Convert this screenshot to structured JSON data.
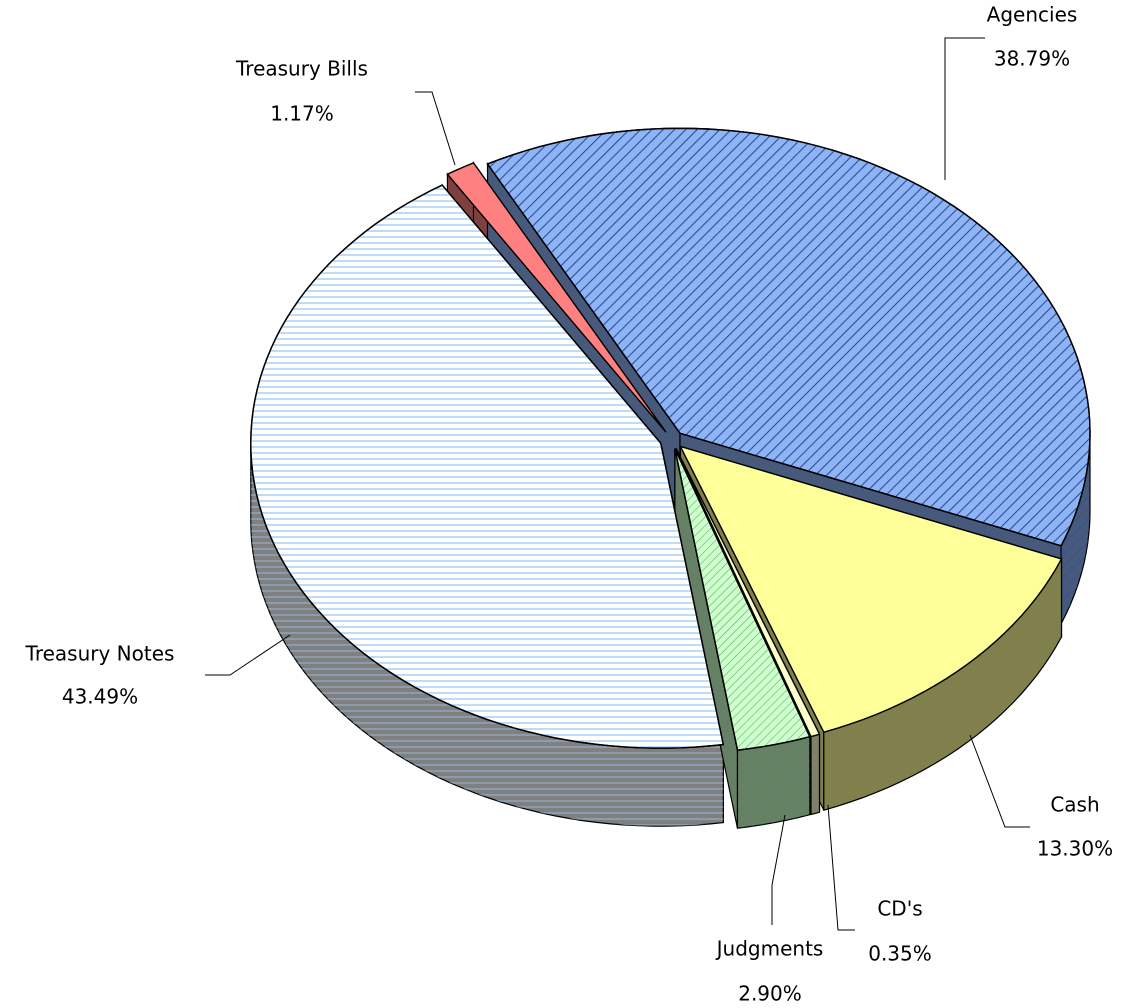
{
  "chart_data": {
    "type": "pie",
    "categories": [
      "Agencies",
      "Cash",
      "CD's",
      "Judgments",
      "Treasury Notes",
      "Treasury Bills"
    ],
    "values": [
      38.79,
      13.3,
      0.35,
      2.9,
      43.49,
      1.17
    ],
    "value_labels": [
      "38.79%",
      "13.30%",
      "0.35%",
      "2.90%",
      "43.49%",
      "1.17%"
    ],
    "colors": [
      "#8fb4f5",
      "#ffff99",
      "#ffffcc",
      "#ccffcc",
      "#ffffff",
      "#ff8080"
    ]
  }
}
